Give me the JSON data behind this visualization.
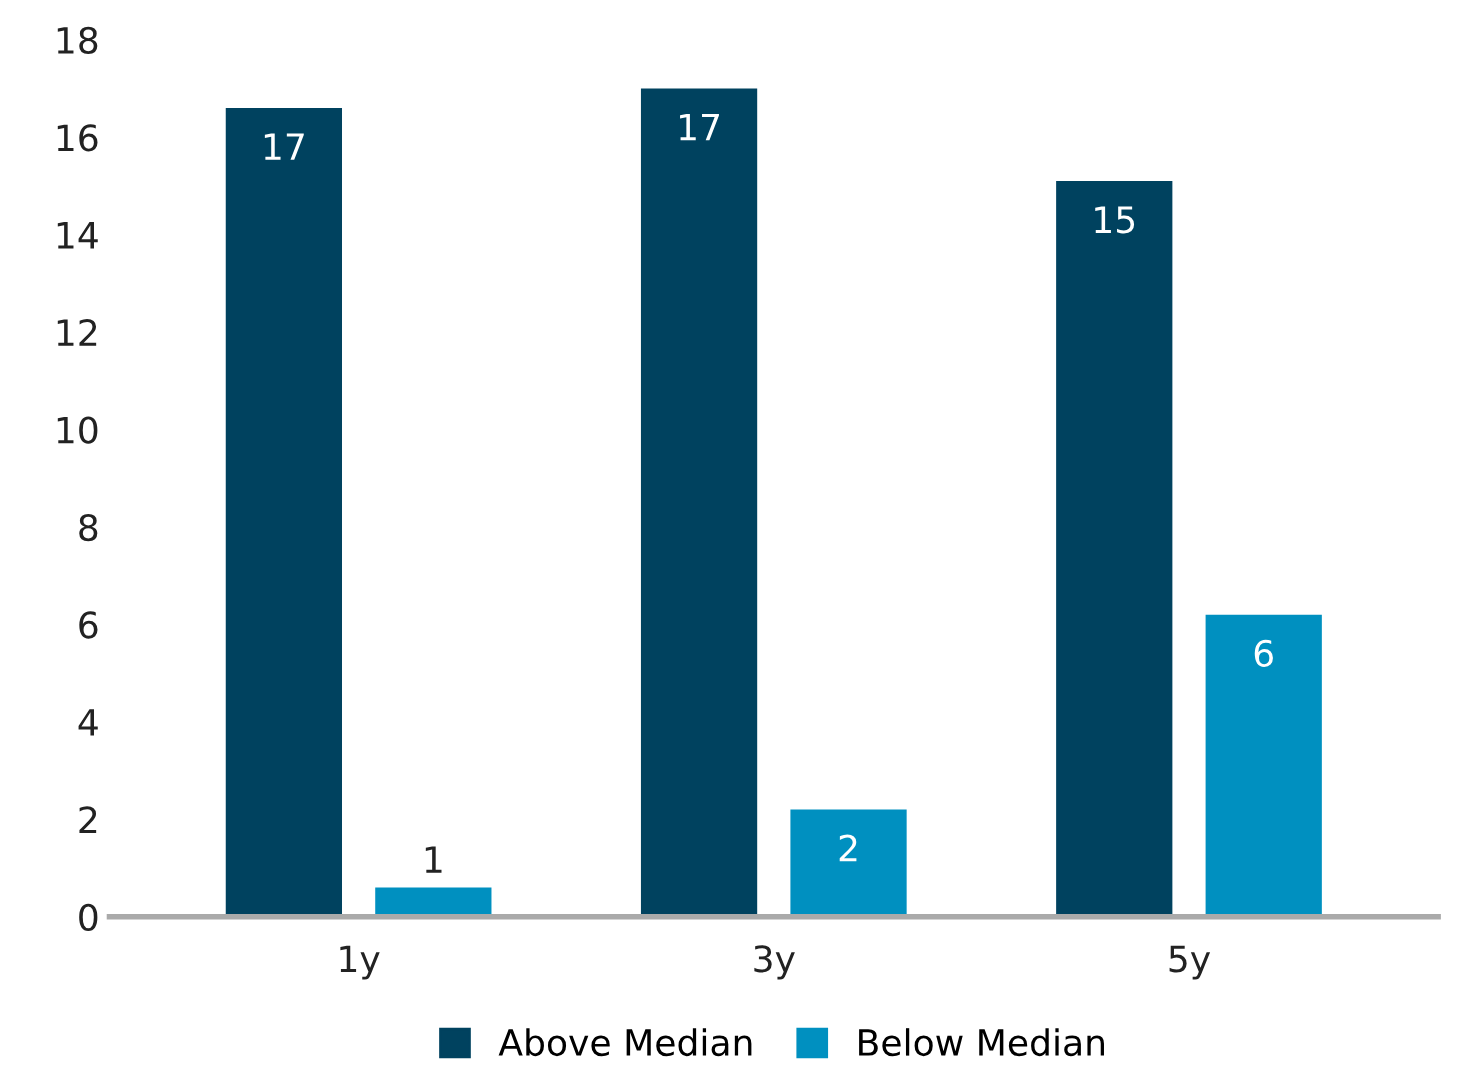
{
  "chart_data": {
    "type": "bar",
    "categories": [
      "1y",
      "3y",
      "5y"
    ],
    "series": [
      {
        "name": "Above Median",
        "color": "#00425f",
        "values": [
          16.6,
          17.0,
          15.1
        ],
        "value_labels": [
          "17",
          "17",
          "15"
        ]
      },
      {
        "name": "Below Median",
        "color": "#0090c0",
        "values": [
          0.6,
          2.2,
          6.2
        ],
        "value_labels": [
          "1",
          "2",
          "6"
        ]
      }
    ],
    "ylim": [
      0,
      18
    ],
    "yticks": [
      0,
      2,
      4,
      6,
      8,
      10,
      12,
      14,
      16,
      18
    ],
    "grid": false,
    "legend": "bottom"
  }
}
